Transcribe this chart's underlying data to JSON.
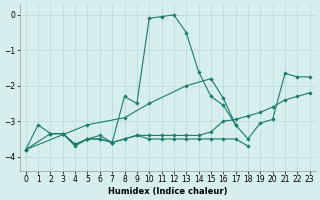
{
  "xlabel": "Humidex (Indice chaleur)",
  "bg_color": "#d7eeee",
  "grid_color": "#b8d8d8",
  "line_color": "#1a7a6e",
  "xlim": [
    -0.5,
    23.5
  ],
  "ylim": [
    -4.4,
    0.3
  ],
  "yticks": [
    0,
    -1,
    -2,
    -3,
    -4
  ],
  "xticks": [
    0,
    1,
    2,
    3,
    4,
    5,
    6,
    7,
    8,
    9,
    10,
    11,
    12,
    13,
    14,
    15,
    16,
    17,
    18,
    19,
    20,
    21,
    22,
    23
  ],
  "series1_x": [
    0,
    1,
    2,
    3,
    4,
    5,
    6,
    7,
    8,
    9,
    10,
    11,
    12,
    13,
    14,
    15,
    16,
    17
  ],
  "series1_y": [
    -3.8,
    -3.1,
    -3.35,
    -3.35,
    -3.7,
    -3.5,
    -3.4,
    -3.6,
    -2.3,
    -2.5,
    -0.1,
    -0.05,
    0.0,
    -0.5,
    -1.6,
    -2.3,
    -2.55,
    -3.1
  ],
  "series2_x": [
    2,
    3,
    4,
    5,
    6,
    7,
    8,
    9,
    10,
    11,
    12,
    13,
    14,
    15,
    16,
    17,
    18
  ],
  "series2_y": [
    -3.35,
    -3.35,
    -3.65,
    -3.5,
    -3.5,
    -3.6,
    -3.5,
    -3.4,
    -3.5,
    -3.5,
    -3.5,
    -3.5,
    -3.5,
    -3.5,
    -3.5,
    -3.5,
    -3.7
  ],
  "series3_x": [
    0,
    2,
    3,
    4,
    5,
    6,
    7,
    8,
    9,
    10,
    11,
    12,
    13,
    14,
    15,
    16,
    17,
    18,
    19,
    20,
    21,
    22,
    23
  ],
  "series3_y": [
    -3.8,
    -3.35,
    -3.35,
    -3.65,
    -3.5,
    -3.5,
    -3.6,
    -3.5,
    -3.4,
    -3.4,
    -3.4,
    -3.4,
    -3.4,
    -3.4,
    -3.3,
    -3.0,
    -2.95,
    -2.85,
    -2.75,
    -2.6,
    -2.4,
    -2.3,
    -2.2
  ],
  "series4_x": [
    0,
    5,
    8,
    10,
    13,
    15,
    16,
    17,
    18,
    19,
    20,
    21,
    22,
    23
  ],
  "series4_y": [
    -3.8,
    -3.1,
    -2.9,
    -2.5,
    -2.0,
    -1.8,
    -2.35,
    -3.1,
    -3.5,
    -3.05,
    -2.95,
    -1.65,
    -1.75,
    -1.75
  ]
}
